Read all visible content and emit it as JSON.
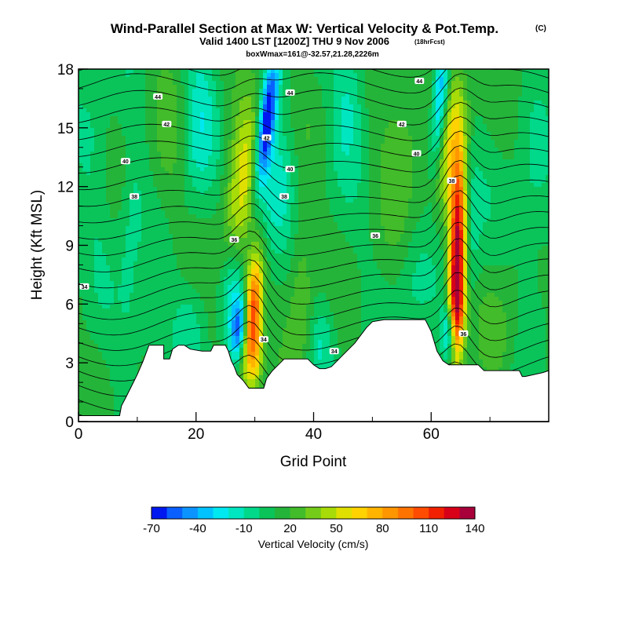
{
  "chart_data": {
    "type": "heatmap",
    "title": "Wind-Parallel Section at Max W: Vertical Velocity & Pot.Temp.",
    "title_mark": "(C)",
    "subtitle": "Valid 1400 LST [1200Z] THU 9 Nov 2006",
    "subtitle_note": "(18hrFcst)",
    "subtitle2": "boxWmax=161@-32.57,21.28,2226m",
    "xlabel": "Grid Point",
    "ylabel": "Height (Kft MSL)",
    "xlim": [
      0,
      80
    ],
    "ylim": [
      0,
      18
    ],
    "x_ticks": [
      0,
      20,
      40,
      60
    ],
    "x_tick_labels": [
      "0",
      "20",
      "40",
      "60"
    ],
    "y_ticks": [
      0,
      3,
      6,
      9,
      12,
      15,
      18
    ],
    "y_tick_labels": [
      "0",
      "3",
      "6",
      "9",
      "12",
      "15",
      "18"
    ],
    "terrain_kft": [
      [
        0,
        0.3
      ],
      [
        7,
        0.3
      ],
      [
        7.3,
        0.8
      ],
      [
        8,
        1.2
      ],
      [
        9,
        1.8
      ],
      [
        10,
        2.4
      ],
      [
        11,
        3.1
      ],
      [
        12,
        3.9
      ],
      [
        14.5,
        3.9
      ],
      [
        14.5,
        3.2
      ],
      [
        15.5,
        3.2
      ],
      [
        16,
        3.7
      ],
      [
        17,
        3.9
      ],
      [
        18,
        3.9
      ],
      [
        19,
        3.7
      ],
      [
        21,
        3.6
      ],
      [
        22.5,
        3.6
      ],
      [
        23,
        3.9
      ],
      [
        25,
        3.9
      ],
      [
        25.5,
        3.6
      ],
      [
        26,
        3.1
      ],
      [
        26.5,
        2.8
      ],
      [
        27,
        2.4
      ],
      [
        28,
        2.1
      ],
      [
        29,
        1.7
      ],
      [
        31.5,
        1.7
      ],
      [
        32,
        2.2
      ],
      [
        33,
        2.6
      ],
      [
        34,
        2.9
      ],
      [
        35,
        3.2
      ],
      [
        37,
        3.2
      ],
      [
        39,
        3.2
      ],
      [
        40,
        2.9
      ],
      [
        41,
        2.7
      ],
      [
        42,
        2.7
      ],
      [
        43,
        2.8
      ],
      [
        44,
        3.1
      ],
      [
        45,
        3.4
      ],
      [
        46,
        3.7
      ],
      [
        47,
        4.0
      ],
      [
        48,
        4.4
      ],
      [
        49,
        4.8
      ],
      [
        50,
        5.1
      ],
      [
        52,
        5.2
      ],
      [
        57,
        5.2
      ],
      [
        59,
        5.2
      ],
      [
        60,
        4.6
      ],
      [
        61,
        3.6
      ],
      [
        62,
        3.1
      ],
      [
        63,
        2.9
      ],
      [
        66,
        2.9
      ],
      [
        68,
        2.9
      ],
      [
        69,
        2.6
      ],
      [
        75,
        2.6
      ],
      [
        75.5,
        2.3
      ],
      [
        76,
        2.3
      ],
      [
        79,
        2.5
      ],
      [
        80,
        2.6
      ]
    ],
    "color_scale": {
      "label": "Vertical Velocity (cm/s)",
      "tick_labels": [
        "-70",
        "-40",
        "-10",
        "20",
        "50",
        "80",
        "110",
        "140"
      ],
      "levels": [
        -70,
        -60,
        -50,
        -40,
        -30,
        -20,
        -10,
        0,
        10,
        20,
        30,
        40,
        50,
        60,
        70,
        80,
        90,
        100,
        110,
        120,
        130,
        140
      ],
      "colors": [
        "#0018f0",
        "#0a60ff",
        "#0b94ff",
        "#00c2ff",
        "#00e8f0",
        "#00e6c0",
        "#00d88a",
        "#0ac45a",
        "#24b43a",
        "#42bc2a",
        "#74cc18",
        "#a8dc08",
        "#e0e000",
        "#ffd200",
        "#ffb400",
        "#ff9600",
        "#ff7400",
        "#ff4c00",
        "#f02000",
        "#d80018",
        "#a8003a"
      ]
    },
    "w_field": {
      "background": 10,
      "blobs": [
        {
          "x": 29.5,
          "z": 5.5,
          "sx": 1.1,
          "sz": 2.0,
          "tilt": 0.26,
          "w": 110
        },
        {
          "x": 30.2,
          "z": 3.2,
          "sx": 1.0,
          "sz": 1.3,
          "tilt": 0.2,
          "w": 40
        },
        {
          "x": 28.0,
          "z": 12.5,
          "sx": 2.0,
          "sz": 4.0,
          "tilt": 0.32,
          "w": 40
        },
        {
          "x": 27.5,
          "z": 4.8,
          "sx": 1.1,
          "sz": 1.2,
          "tilt": 0.3,
          "w": -70
        },
        {
          "x": 32.0,
          "z": 15.2,
          "sx": 1.0,
          "sz": 2.4,
          "tilt": 0.38,
          "w": -85
        },
        {
          "x": 33.2,
          "z": 11.5,
          "sx": 2.2,
          "sz": 2.2,
          "tilt": 0.3,
          "w": -28
        },
        {
          "x": 64.5,
          "z": 8.5,
          "sx": 1.0,
          "sz": 3.5,
          "tilt": 0.05,
          "w": 130
        },
        {
          "x": 64.2,
          "z": 5.5,
          "sx": 0.9,
          "sz": 1.6,
          "tilt": 0.05,
          "w": 50
        },
        {
          "x": 63.0,
          "z": 15.0,
          "sx": 2.3,
          "sz": 3.0,
          "tilt": 0.2,
          "w": 40
        },
        {
          "x": 63.2,
          "z": 4.5,
          "sx": 0.9,
          "sz": 1.1,
          "tilt": 0.0,
          "w": -60
        },
        {
          "x": 61.5,
          "z": 16.3,
          "sx": 1.0,
          "sz": 2.6,
          "tilt": 0.25,
          "w": -70
        },
        {
          "x": 20.5,
          "z": 15.5,
          "sx": 2.0,
          "sz": 3.0,
          "tilt": 0.2,
          "w": -25
        },
        {
          "x": 26.0,
          "z": 6.8,
          "sx": 1.5,
          "sz": 1.6,
          "tilt": 0.2,
          "w": -30
        },
        {
          "x": 19.0,
          "z": 5.0,
          "sx": 2.0,
          "sz": 1.5,
          "tilt": 0.2,
          "w": -15
        },
        {
          "x": 12.0,
          "z": 5.0,
          "sx": 2.0,
          "sz": 1.3,
          "tilt": 0.1,
          "w": -18
        },
        {
          "x": 9.0,
          "z": 9.5,
          "sx": 1.5,
          "sz": 4.0,
          "tilt": 0.1,
          "w": -15
        },
        {
          "x": 38.0,
          "z": 6.5,
          "sx": 1.5,
          "sz": 3.5,
          "tilt": 0.0,
          "w": 22
        },
        {
          "x": 41.0,
          "z": 4.0,
          "sx": 1.8,
          "sz": 1.5,
          "tilt": 0.2,
          "w": -20
        },
        {
          "x": 46.0,
          "z": 16.5,
          "sx": 2.0,
          "sz": 2.5,
          "tilt": 0.2,
          "w": -22
        },
        {
          "x": 55.0,
          "z": 14.5,
          "sx": 2.5,
          "sz": 3.0,
          "tilt": 0.1,
          "w": 20
        },
        {
          "x": 66.5,
          "z": 10.0,
          "sx": 1.3,
          "sz": 3.5,
          "tilt": 0.0,
          "w": -20
        },
        {
          "x": 72.0,
          "z": 4.5,
          "sx": 2.5,
          "sz": 2.0,
          "tilt": 0.0,
          "w": 15
        },
        {
          "x": 77.0,
          "z": 10.0,
          "sx": 2.0,
          "sz": 4.0,
          "tilt": 0.0,
          "w": -12
        },
        {
          "x": 57.0,
          "z": 7.0,
          "sx": 2.0,
          "sz": 2.0,
          "tilt": 0.0,
          "w": -12
        },
        {
          "x": 15.0,
          "z": 13.0,
          "sx": 2.5,
          "sz": 3.0,
          "tilt": 0.0,
          "w": 12
        },
        {
          "x": 3.0,
          "z": 14.0,
          "sx": 2.0,
          "sz": 4.0,
          "tilt": 0.0,
          "w": -10
        }
      ]
    },
    "theta_field": {
      "base": 33.2,
      "per_kft": 0.62,
      "start": 33,
      "end": 46,
      "step": 0.5,
      "perturbations": [
        {
          "x": 29.5,
          "z": 8,
          "sx": 2.5,
          "sz": 6,
          "a": -1.2
        },
        {
          "x": 64.5,
          "z": 10,
          "sx": 2.5,
          "sz": 7,
          "a": -1.4
        },
        {
          "x": 46,
          "z": 9,
          "sx": 8,
          "sz": 5,
          "a": 0.6
        },
        {
          "x": 12,
          "z": 9,
          "sx": 8,
          "sz": 6,
          "a": 0.4
        }
      ]
    },
    "contour_labels": [
      {
        "text": "44",
        "x": 13.5,
        "z": 16.6
      },
      {
        "text": "44",
        "x": 36.0,
        "z": 16.8
      },
      {
        "text": "44",
        "x": 58.0,
        "z": 17.4
      },
      {
        "text": "42",
        "x": 15.0,
        "z": 15.2
      },
      {
        "text": "42",
        "x": 55.0,
        "z": 15.2
      },
      {
        "text": "42",
        "x": 32.0,
        "z": 14.5
      },
      {
        "text": "40",
        "x": 8.0,
        "z": 13.3
      },
      {
        "text": "40",
        "x": 36.0,
        "z": 12.9
      },
      {
        "text": "40",
        "x": 57.5,
        "z": 13.7
      },
      {
        "text": "38",
        "x": 9.5,
        "z": 11.5
      },
      {
        "text": "38",
        "x": 35.0,
        "z": 11.5
      },
      {
        "text": "38",
        "x": 63.5,
        "z": 12.3
      },
      {
        "text": "36",
        "x": 26.5,
        "z": 9.3
      },
      {
        "text": "36",
        "x": 50.5,
        "z": 9.5
      },
      {
        "text": "34",
        "x": 1.0,
        "z": 6.9
      },
      {
        "text": "34",
        "x": 31.5,
        "z": 4.2
      },
      {
        "text": "34",
        "x": 43.5,
        "z": 3.6
      },
      {
        "text": "36",
        "x": 65.5,
        "z": 4.5
      }
    ]
  }
}
